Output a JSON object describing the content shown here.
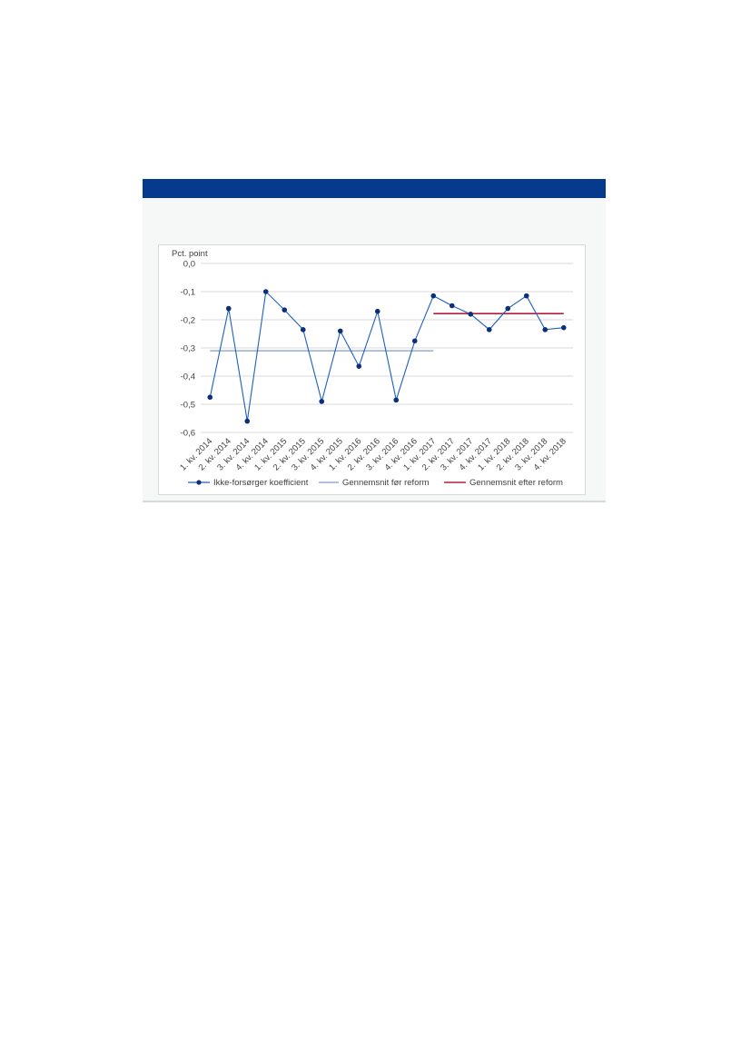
{
  "chart_data": {
    "type": "line",
    "ylabel": "Pct. point",
    "xlabel": "",
    "ylim": [
      -0.6,
      0.0
    ],
    "yticks": [
      0.0,
      -0.1,
      -0.2,
      -0.3,
      -0.4,
      -0.5,
      -0.6
    ],
    "ytick_labels": [
      "0,0",
      "-0,1",
      "-0,2",
      "-0,3",
      "-0,4",
      "-0,5",
      "-0,6"
    ],
    "grid": "horizontal",
    "legend_position": "bottom",
    "categories": [
      "1. kv. 2014",
      "2. kv. 2014",
      "3. kv. 2014",
      "4. kv. 2014",
      "1. kv. 2015",
      "2. kv. 2015",
      "3. kv. 2015",
      "4. kv. 2015",
      "1. kv. 2016",
      "2. kv. 2016",
      "3. kv. 2016",
      "4. kv. 2016",
      "1. kv. 2017",
      "2. kv. 2017",
      "3. kv. 2017",
      "4. kv. 2017",
      "1. kv. 2018",
      "2. kv. 2018",
      "3. kv. 2018",
      "4. kv. 2018"
    ],
    "series": [
      {
        "name": "Ikke-forsørger koefficient",
        "kind": "line-markers",
        "color": "#1f5fbf",
        "marker_color": "#0b2f7a",
        "values": [
          -0.475,
          -0.16,
          -0.56,
          -0.1,
          -0.165,
          -0.235,
          -0.49,
          -0.24,
          -0.365,
          -0.17,
          -0.485,
          -0.275,
          -0.115,
          -0.15,
          -0.18,
          -0.235,
          -0.16,
          -0.115,
          -0.235,
          -0.228
        ]
      },
      {
        "name": "Gennemsnit før reform",
        "kind": "hline",
        "color": "#7f9cc9",
        "value": -0.31,
        "from": "1. kv. 2014",
        "to": "1. kv. 2017"
      },
      {
        "name": "Gennemsnit efter reform",
        "kind": "hline",
        "color": "#b2203b",
        "value": -0.178,
        "from": "1. kv. 2017",
        "to": "4. kv. 2018"
      }
    ]
  }
}
